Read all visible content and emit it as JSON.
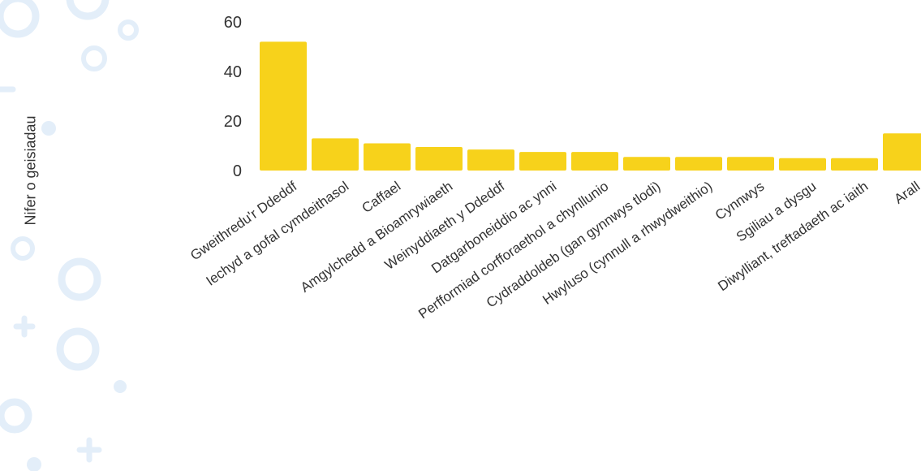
{
  "chart_data": {
    "type": "bar",
    "ylabel": "Nifer o geisiadau",
    "xlabel": "",
    "ylim": [
      0,
      60
    ],
    "yticks": [
      0,
      20,
      40,
      60
    ],
    "grid": false,
    "categories": [
      "Gweithredu'r Ddeddf",
      "Iechyd a gofal cymdeithasol",
      "Caffael",
      "Amgylchedd a Bioamrywiaeth",
      "Weinyddiaeth y Ddeddf",
      "Datgarboneiddio ac ynni",
      "Perfformiad corfforaethol a chynllunio",
      "Cydraddoldeb (gan gynnwys tlodi)",
      "Hwyluso (cynnull a rhwydweithio)",
      "Cynnwys",
      "Sgiliau a dysgu",
      "Diwylliant, treftadaeth ac iaith",
      "Arall"
    ],
    "values": [
      52,
      13,
      11,
      9.5,
      8.5,
      7.5,
      7.5,
      5.5,
      5.5,
      5.5,
      5,
      5,
      15
    ],
    "colors": {
      "bar": "#f7d21b",
      "text": "#333333",
      "decor": "#dcebf8"
    }
  }
}
